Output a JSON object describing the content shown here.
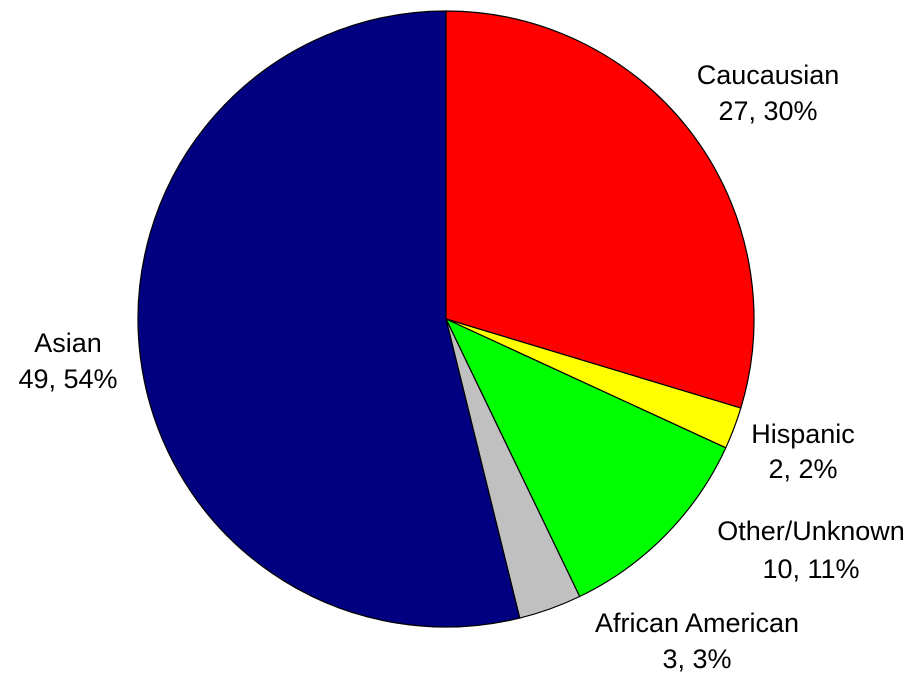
{
  "chart_data": {
    "type": "pie",
    "title": "",
    "slices": [
      {
        "label": "Caucausian",
        "value": 27,
        "percent_label": "27, 30%",
        "color": "#ff0000"
      },
      {
        "label": "Hispanic",
        "value": 2,
        "percent_label": "2, 2%",
        "color": "#ffff00"
      },
      {
        "label": "Other/Unknown",
        "value": 10,
        "percent_label": "10, 11%",
        "color": "#00ff00"
      },
      {
        "label": "African American",
        "value": 3,
        "percent_label": "3, 3%",
        "color": "#c0c0c0"
      },
      {
        "label": "Asian",
        "value": 49,
        "percent_label": "49, 54%",
        "color": "#000080"
      }
    ],
    "start_angle": "12 o'clock",
    "direction": "clockwise",
    "legend": "none"
  }
}
